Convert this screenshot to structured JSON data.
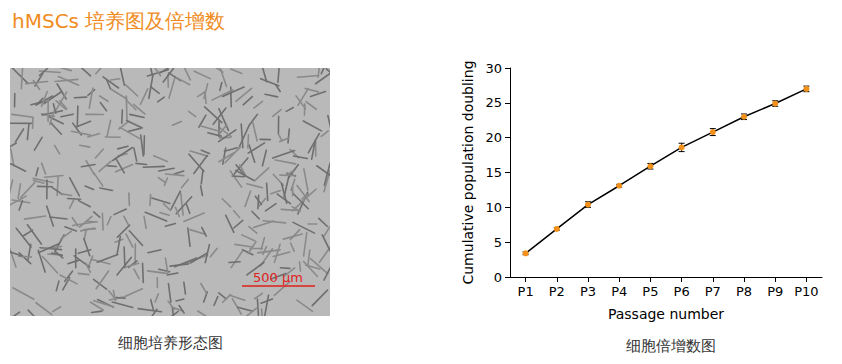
{
  "page": {
    "title": "hMSCs 培养图及倍增数",
    "image_caption": "细胞培养形态图",
    "scale_bar": "500 μm"
  },
  "chart_data": {
    "type": "line",
    "title": "细胞倍增数图",
    "x_label": "Passage number",
    "y_label": "Cumulative population doubling",
    "categories": [
      "P1",
      "P2",
      "P3",
      "P4",
      "P5",
      "P6",
      "P7",
      "P8",
      "P9",
      "P10"
    ],
    "series": [
      {
        "name": "Cumulative population doubling",
        "color": "#f39019",
        "marker": "circle",
        "line_style": "solid",
        "values": [
          3.4,
          6.9,
          10.4,
          13.1,
          15.9,
          18.6,
          20.8,
          23.0,
          24.9,
          27.0
        ],
        "errors": [
          0.2,
          0.2,
          0.4,
          0.2,
          0.4,
          0.6,
          0.5,
          0.4,
          0.4,
          0.4
        ]
      }
    ],
    "ylim": [
      0,
      30
    ],
    "yticks": [
      0,
      5,
      10,
      15,
      20,
      25,
      30
    ],
    "grid": false
  }
}
